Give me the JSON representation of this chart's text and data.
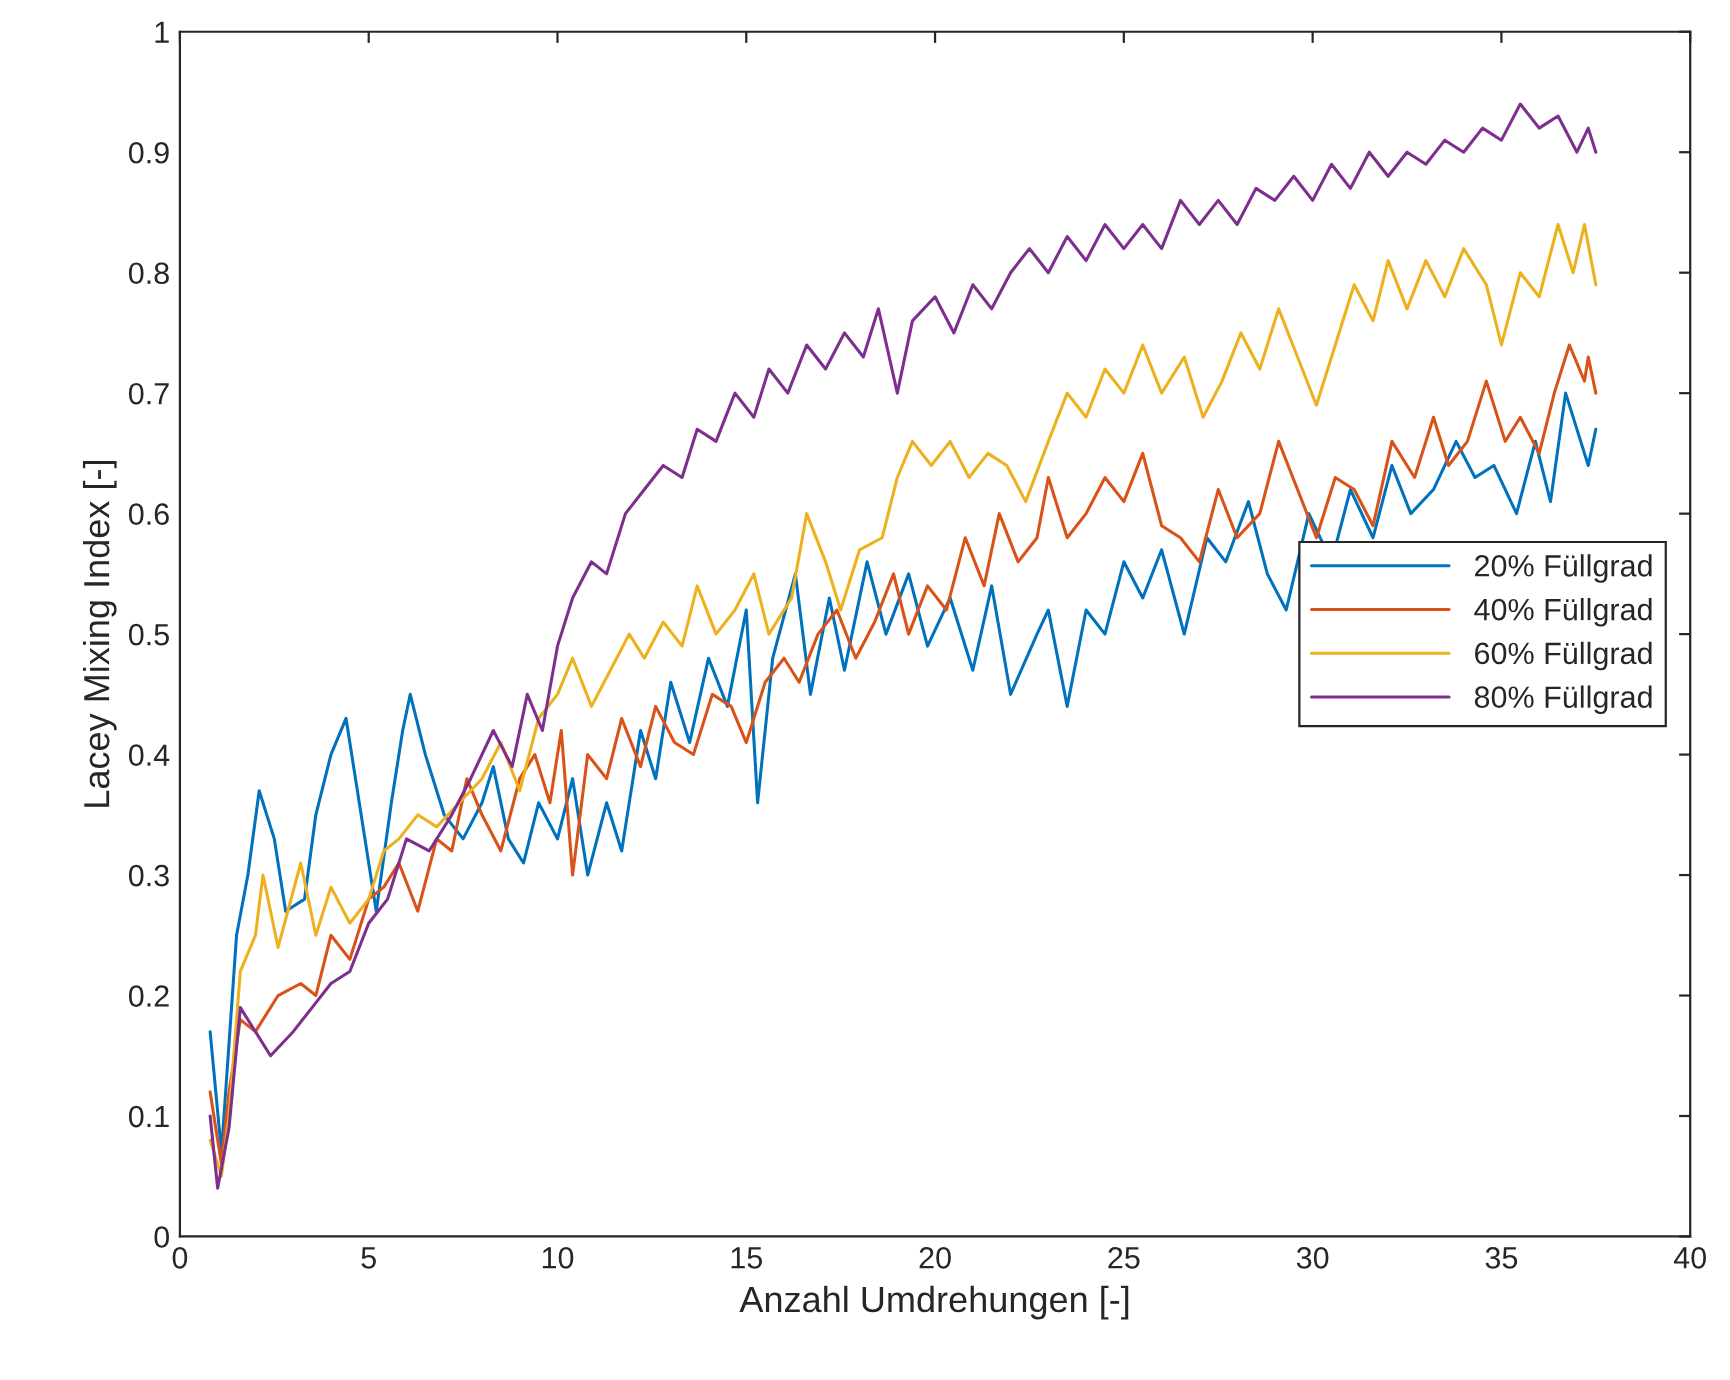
{
  "chart_data": {
    "type": "line",
    "xlabel": "Anzahl Umdrehungen [-]",
    "ylabel": "Lacey Mixing Index [-]",
    "xlim": [
      0,
      40
    ],
    "ylim": [
      0,
      1
    ],
    "xticks": [
      0,
      5,
      10,
      15,
      20,
      25,
      30,
      35,
      40
    ],
    "yticks": [
      0,
      0.1,
      0.2,
      0.3,
      0.4,
      0.5,
      0.6,
      0.7,
      0.8,
      0.9,
      1
    ],
    "grid": false,
    "legend": "right",
    "marker": "none",
    "line_style": "solid",
    "series": [
      {
        "name": "20% Füllgrad",
        "color": "#0072bd",
        "x": [
          0.8,
          1.1,
          1.5,
          1.8,
          2.1,
          2.5,
          2.8,
          3.3,
          3.6,
          4.0,
          4.4,
          4.8,
          5.2,
          5.6,
          5.9,
          6.1,
          6.5,
          7.0,
          7.5,
          8.0,
          8.3,
          8.7,
          9.1,
          9.5,
          10.0,
          10.4,
          10.8,
          11.3,
          11.7,
          12.2,
          12.6,
          13.0,
          13.5,
          14.0,
          14.5,
          15.0,
          15.3,
          15.7,
          16.3,
          16.7,
          17.2,
          17.6,
          18.2,
          18.7,
          19.3,
          19.8,
          20.4,
          21.0,
          21.5,
          22.0,
          22.7,
          23.0,
          23.5,
          24.0,
          24.5,
          25.0,
          25.5,
          26.0,
          26.6,
          27.2,
          27.7,
          28.3,
          28.8,
          29.3,
          29.9,
          30.5,
          31.0,
          31.6,
          32.1,
          32.6,
          33.2,
          33.8,
          34.3,
          34.8,
          35.4,
          35.9,
          36.3,
          36.7,
          37.1,
          37.3,
          37.5
        ],
        "values": [
          0.17,
          0.07,
          0.25,
          0.3,
          0.37,
          0.33,
          0.27,
          0.28,
          0.35,
          0.4,
          0.43,
          0.35,
          0.27,
          0.36,
          0.42,
          0.45,
          0.4,
          0.35,
          0.33,
          0.36,
          0.39,
          0.33,
          0.31,
          0.36,
          0.33,
          0.38,
          0.3,
          0.36,
          0.32,
          0.42,
          0.38,
          0.46,
          0.41,
          0.48,
          0.44,
          0.52,
          0.36,
          0.48,
          0.55,
          0.45,
          0.53,
          0.47,
          0.56,
          0.5,
          0.55,
          0.49,
          0.53,
          0.47,
          0.54,
          0.45,
          0.5,
          0.52,
          0.44,
          0.52,
          0.5,
          0.56,
          0.53,
          0.57,
          0.5,
          0.58,
          0.56,
          0.61,
          0.55,
          0.52,
          0.6,
          0.56,
          0.62,
          0.58,
          0.64,
          0.6,
          0.62,
          0.66,
          0.63,
          0.64,
          0.6,
          0.66,
          0.61,
          0.7,
          0.66,
          0.64,
          0.67
        ]
      },
      {
        "name": "40% Füllgrad",
        "color": "#d95319",
        "x": [
          0.8,
          1.1,
          1.3,
          1.6,
          2.0,
          2.6,
          3.2,
          3.6,
          4.0,
          4.5,
          5.0,
          5.4,
          5.8,
          6.3,
          6.8,
          7.2,
          7.6,
          8.0,
          8.5,
          9.0,
          9.4,
          9.8,
          10.1,
          10.4,
          10.8,
          11.3,
          11.7,
          12.2,
          12.6,
          13.1,
          13.6,
          14.1,
          14.6,
          15.0,
          15.5,
          16.0,
          16.4,
          16.9,
          17.4,
          17.9,
          18.4,
          18.9,
          19.3,
          19.8,
          20.3,
          20.8,
          21.3,
          21.7,
          22.2,
          22.7,
          23.0,
          23.5,
          24.0,
          24.5,
          25.0,
          25.5,
          26.0,
          26.5,
          27.0,
          27.5,
          28.0,
          28.6,
          29.1,
          29.6,
          30.1,
          30.6,
          31.1,
          31.6,
          32.1,
          32.7,
          33.2,
          33.6,
          34.1,
          34.6,
          35.1,
          35.5,
          36.0,
          36.4,
          36.8,
          37.2,
          37.3,
          37.5
        ],
        "values": [
          0.12,
          0.06,
          0.12,
          0.18,
          0.17,
          0.2,
          0.21,
          0.2,
          0.25,
          0.23,
          0.28,
          0.29,
          0.31,
          0.27,
          0.33,
          0.32,
          0.38,
          0.35,
          0.32,
          0.38,
          0.4,
          0.36,
          0.42,
          0.3,
          0.4,
          0.38,
          0.43,
          0.39,
          0.44,
          0.41,
          0.4,
          0.45,
          0.44,
          0.41,
          0.46,
          0.48,
          0.46,
          0.5,
          0.52,
          0.48,
          0.51,
          0.55,
          0.5,
          0.54,
          0.52,
          0.58,
          0.54,
          0.6,
          0.56,
          0.58,
          0.63,
          0.58,
          0.6,
          0.63,
          0.61,
          0.65,
          0.59,
          0.58,
          0.56,
          0.62,
          0.58,
          0.6,
          0.66,
          0.62,
          0.58,
          0.63,
          0.62,
          0.59,
          0.66,
          0.63,
          0.68,
          0.64,
          0.66,
          0.71,
          0.66,
          0.68,
          0.65,
          0.7,
          0.74,
          0.71,
          0.73,
          0.7
        ]
      },
      {
        "name": "60% Füllgrad",
        "color": "#edb120",
        "x": [
          0.8,
          1.1,
          1.3,
          1.6,
          2.0,
          2.2,
          2.6,
          3.2,
          3.6,
          4.0,
          4.5,
          5.0,
          5.4,
          5.8,
          6.3,
          6.8,
          7.4,
          8.0,
          8.5,
          9.0,
          9.5,
          10.0,
          10.4,
          10.9,
          11.4,
          11.9,
          12.3,
          12.8,
          13.3,
          13.7,
          14.2,
          14.7,
          15.2,
          15.6,
          16.2,
          16.6,
          17.1,
          17.5,
          18.0,
          18.6,
          19.0,
          19.4,
          19.9,
          20.4,
          20.9,
          21.4,
          21.9,
          22.4,
          23.0,
          23.5,
          24.0,
          24.5,
          25.0,
          25.5,
          26.0,
          26.6,
          27.1,
          27.6,
          28.1,
          28.6,
          29.1,
          29.6,
          30.1,
          30.6,
          31.1,
          31.6,
          32.0,
          32.5,
          33.0,
          33.5,
          34.0,
          34.6,
          35.0,
          35.5,
          36.0,
          36.5,
          36.9,
          37.2,
          37.5
        ],
        "values": [
          0.08,
          0.05,
          0.1,
          0.22,
          0.25,
          0.3,
          0.24,
          0.31,
          0.25,
          0.29,
          0.26,
          0.28,
          0.32,
          0.33,
          0.35,
          0.34,
          0.36,
          0.38,
          0.41,
          0.37,
          0.43,
          0.45,
          0.48,
          0.44,
          0.47,
          0.5,
          0.48,
          0.51,
          0.49,
          0.54,
          0.5,
          0.52,
          0.55,
          0.5,
          0.53,
          0.6,
          0.56,
          0.52,
          0.57,
          0.58,
          0.63,
          0.66,
          0.64,
          0.66,
          0.63,
          0.65,
          0.64,
          0.61,
          0.66,
          0.7,
          0.68,
          0.72,
          0.7,
          0.74,
          0.7,
          0.73,
          0.68,
          0.71,
          0.75,
          0.72,
          0.77,
          0.73,
          0.69,
          0.74,
          0.79,
          0.76,
          0.81,
          0.77,
          0.81,
          0.78,
          0.82,
          0.79,
          0.74,
          0.8,
          0.78,
          0.84,
          0.8,
          0.84,
          0.79
        ]
      },
      {
        "name": "80% Füllgrad",
        "color": "#7e2f8e",
        "x": [
          0.8,
          1.0,
          1.3,
          1.6,
          2.0,
          2.4,
          3.0,
          3.5,
          4.0,
          4.5,
          5.0,
          5.5,
          6.0,
          6.6,
          7.2,
          7.7,
          8.3,
          8.8,
          9.2,
          9.6,
          10.0,
          10.4,
          10.9,
          11.3,
          11.8,
          12.3,
          12.8,
          13.3,
          13.7,
          14.2,
          14.7,
          15.2,
          15.6,
          16.1,
          16.6,
          17.1,
          17.6,
          18.1,
          18.5,
          19.0,
          19.4,
          20.0,
          20.5,
          21.0,
          21.5,
          22.0,
          22.5,
          23.0,
          23.5,
          24.0,
          24.5,
          25.0,
          25.5,
          26.0,
          26.5,
          27.0,
          27.5,
          28.0,
          28.5,
          29.0,
          29.5,
          30.0,
          30.5,
          31.0,
          31.5,
          32.0,
          32.5,
          33.0,
          33.5,
          34.0,
          34.5,
          35.0,
          35.5,
          36.0,
          36.5,
          37.0,
          37.3,
          37.5
        ],
        "values": [
          0.1,
          0.04,
          0.09,
          0.19,
          0.17,
          0.15,
          0.17,
          0.19,
          0.21,
          0.22,
          0.26,
          0.28,
          0.33,
          0.32,
          0.35,
          0.38,
          0.42,
          0.39,
          0.45,
          0.42,
          0.49,
          0.53,
          0.56,
          0.55,
          0.6,
          0.62,
          0.64,
          0.63,
          0.67,
          0.66,
          0.7,
          0.68,
          0.72,
          0.7,
          0.74,
          0.72,
          0.75,
          0.73,
          0.77,
          0.7,
          0.76,
          0.78,
          0.75,
          0.79,
          0.77,
          0.8,
          0.82,
          0.8,
          0.83,
          0.81,
          0.84,
          0.82,
          0.84,
          0.82,
          0.86,
          0.84,
          0.86,
          0.84,
          0.87,
          0.86,
          0.88,
          0.86,
          0.89,
          0.87,
          0.9,
          0.88,
          0.9,
          0.89,
          0.91,
          0.9,
          0.92,
          0.91,
          0.94,
          0.92,
          0.93,
          0.9,
          0.92,
          0.9
        ]
      }
    ]
  }
}
